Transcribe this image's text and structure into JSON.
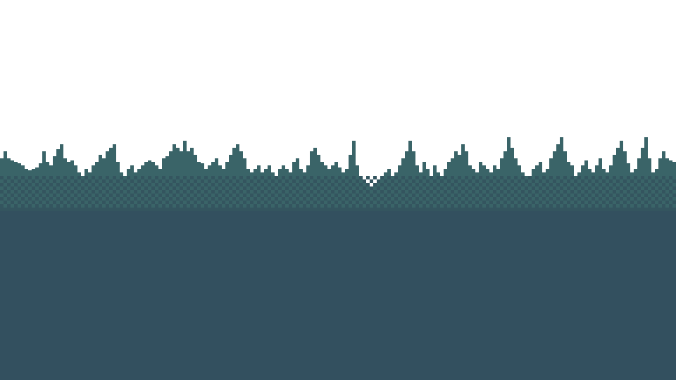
{
  "scene": {
    "description_visible_text": "",
    "colors": {
      "sky": "#ffffff",
      "treeline": "#3a6468",
      "dither_dark": "#34555f",
      "ground": "#33505f"
    },
    "elements": [
      "pixel-treeline-silhouette",
      "dithered-transition-band",
      "solid-ground"
    ]
  }
}
